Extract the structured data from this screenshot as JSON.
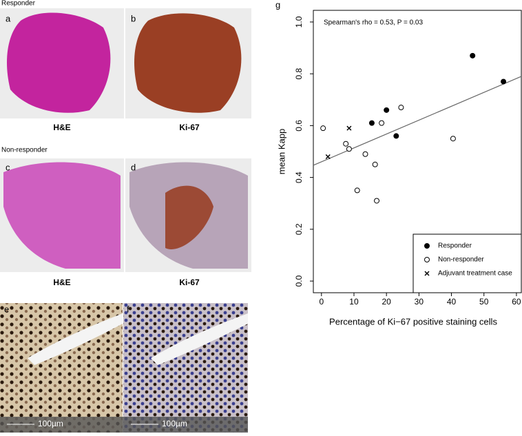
{
  "panels": {
    "responder_heading": "Responder",
    "nonresponder_heading": "Non-responder",
    "a": "a",
    "b": "b",
    "c": "c",
    "d": "d",
    "e": "e",
    "f": "f",
    "g": "g",
    "he_top": "H&E",
    "ki_top": "Ki-67",
    "he_mid": "H&E",
    "ki_mid": "Ki-67",
    "scale_e": "100µm",
    "scale_f": "100µm"
  },
  "chart_data": {
    "type": "scatter",
    "annotation": "Spearman's rho = 0.53, P = 0.03",
    "xlabel": "Percentage of Ki−67 positive staining cells",
    "ylabel": "mean Kapp",
    "xlim": [
      -2.5,
      61.5
    ],
    "ylim": [
      -0.045,
      1.045
    ],
    "xticks": [
      0,
      10,
      20,
      30,
      40,
      50,
      60
    ],
    "yticks": [
      {
        "value": 0,
        "label": "0.0"
      },
      0.2,
      0.4,
      0.6,
      0.8,
      {
        "value": 1,
        "label": "1.0"
      }
    ],
    "legend": "lower right",
    "series": [
      {
        "name": "Responder",
        "marker": "filled",
        "color": "#000000",
        "x": [
          15.5,
          20,
          23,
          46.5,
          56
        ],
        "values": [
          0.61,
          0.66,
          0.56,
          0.87,
          0.77
        ]
      },
      {
        "name": "Non-responder",
        "marker": "open",
        "color": "#000000",
        "x": [
          0.5,
          7.5,
          8.5,
          18.5,
          24.5,
          13.5,
          16.5,
          11,
          17,
          40.5
        ],
        "values": [
          0.59,
          0.53,
          0.51,
          0.61,
          0.67,
          0.49,
          0.45,
          0.35,
          0.31,
          0.55
        ]
      },
      {
        "name": "Adjuvant treatment case",
        "marker": "cross",
        "color": "#000000",
        "x": [
          2,
          8.5
        ],
        "values": [
          0.48,
          0.59
        ]
      }
    ],
    "fit_line": {
      "x": [
        -2.5,
        61.5
      ],
      "y": [
        0.447,
        0.79
      ],
      "color": "#666666"
    }
  }
}
